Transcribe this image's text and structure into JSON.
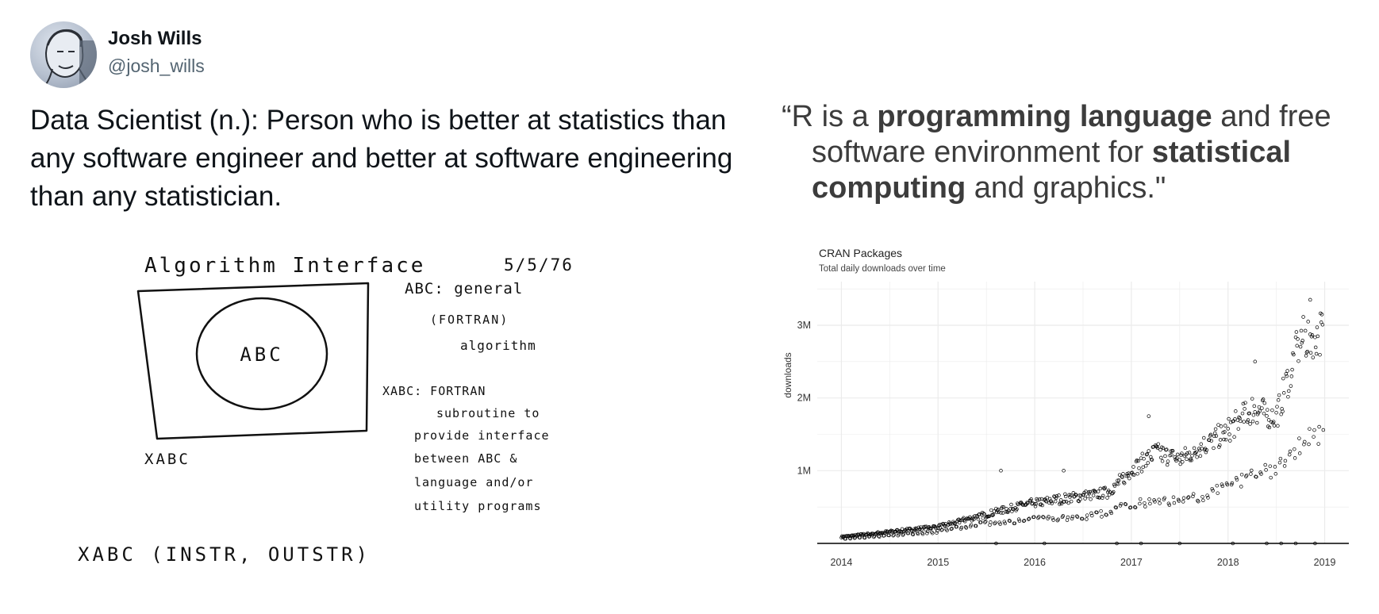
{
  "tweet": {
    "author_name": "Josh Wills",
    "author_handle": "@josh_wills",
    "text": "Data Scientist (n.): Person who is better at statistics than any software engineer and better at software engineering than any statistician."
  },
  "quote": {
    "line1_pre": "“R is a ",
    "line1_bold": "programming language",
    "line1_post": " and free",
    "line2_pre": "software environment for ",
    "line2_bold": "statistical",
    "line3_bold": "computing",
    "line3_post": " and graphics.\""
  },
  "sketch": {
    "title": "Algorithm Interface",
    "date": "5/5/76",
    "circle_label": "ABC",
    "box_label": "XABC",
    "abc_note": [
      "ABC: general",
      "(FORTRAN)",
      "algorithm"
    ],
    "xabc_note": [
      "XABC: FORTRAN",
      "subroutine to",
      "provide interface",
      "between ABC &",
      "language and/or",
      "utility programs"
    ],
    "call": "XABC (INSTR, OUTSTR)"
  },
  "chart_data": {
    "type": "scatter",
    "title": "CRAN Packages",
    "subtitle": "Total daily downloads over time",
    "xlabel": "",
    "ylabel": "downloads",
    "x_ticks": [
      "2014",
      "2015",
      "2016",
      "2017",
      "2018",
      "2019"
    ],
    "y_ticks": [
      "1M",
      "2M",
      "3M"
    ],
    "xlim": [
      2013.75,
      2019.25
    ],
    "ylim": [
      0,
      3600000
    ],
    "grid": true,
    "legend": "none",
    "trend": [
      [
        2014.0,
        90000
      ],
      [
        2014.5,
        160000
      ],
      [
        2015.0,
        230000
      ],
      [
        2015.5,
        400000
      ],
      [
        2016.0,
        560000
      ],
      [
        2016.5,
        650000
      ],
      [
        2016.75,
        700000
      ],
      [
        2017.0,
        1000000
      ],
      [
        2017.25,
        1250000
      ],
      [
        2017.5,
        1150000
      ],
      [
        2017.75,
        1350000
      ],
      [
        2018.0,
        1550000
      ],
      [
        2018.25,
        1850000
      ],
      [
        2018.5,
        1750000
      ],
      [
        2018.75,
        2800000
      ],
      [
        2018.95,
        2900000
      ]
    ],
    "weekend": [
      [
        2014.0,
        60000
      ],
      [
        2014.5,
        110000
      ],
      [
        2015.0,
        160000
      ],
      [
        2015.5,
        280000
      ],
      [
        2016.0,
        330000
      ],
      [
        2016.5,
        360000
      ],
      [
        2016.75,
        420000
      ],
      [
        2017.0,
        550000
      ],
      [
        2017.5,
        600000
      ],
      [
        2017.75,
        650000
      ],
      [
        2018.0,
        780000
      ],
      [
        2018.25,
        950000
      ],
      [
        2018.5,
        1000000
      ],
      [
        2018.75,
        1350000
      ],
      [
        2018.95,
        1500000
      ]
    ],
    "outliers_high": [
      [
        2015.65,
        1000000
      ],
      [
        2016.3,
        1000000
      ],
      [
        2017.18,
        1750000
      ],
      [
        2018.28,
        2500000
      ],
      [
        2018.85,
        3350000
      ]
    ],
    "near_zero_x": [
      2015.6,
      2016.1,
      2016.85,
      2017.1,
      2017.5,
      2018.05,
      2018.4,
      2018.55,
      2018.7,
      2018.9
    ]
  },
  "colors": {
    "text": "#0f1419",
    "handle": "#536471",
    "quote": "#3c3c3c",
    "grid": "#ebebeb",
    "point": "#000000"
  }
}
